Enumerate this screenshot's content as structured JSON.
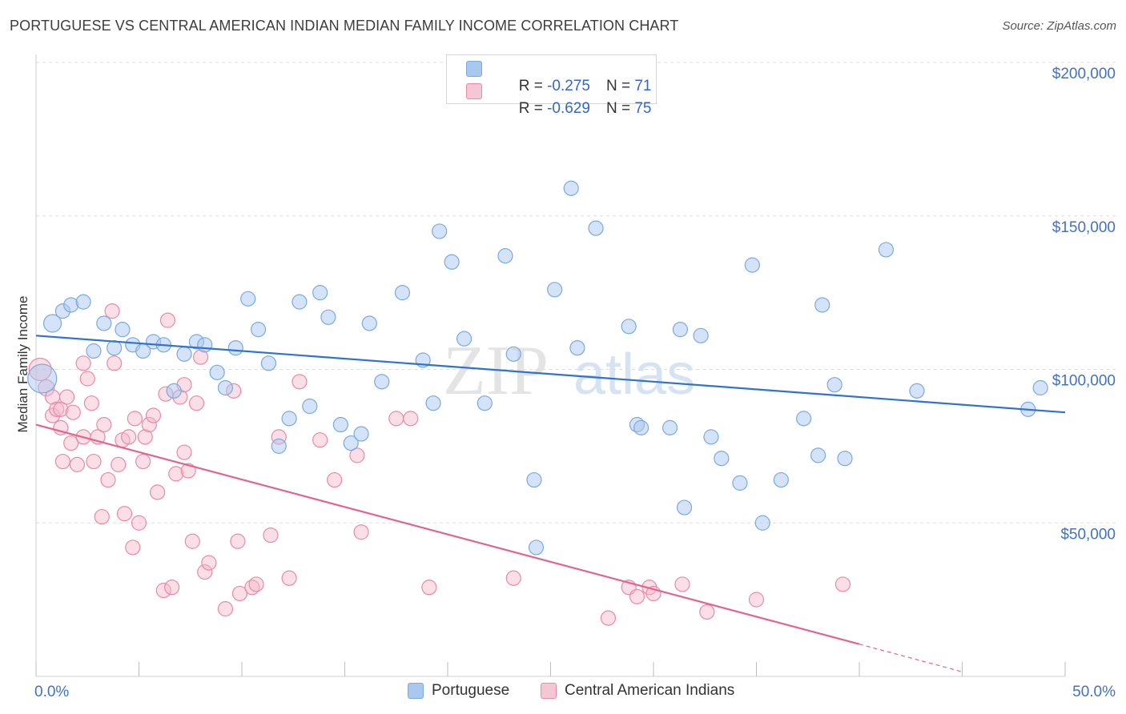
{
  "title": "PORTUGUESE VS CENTRAL AMERICAN INDIAN MEDIAN FAMILY INCOME CORRELATION CHART",
  "source": "Source: ZipAtlas.com",
  "watermark": {
    "zip": "ZIP",
    "atlas": "atlas"
  },
  "colors": {
    "blue_fill": "#a9c8ef",
    "blue_stroke": "#7aaadf",
    "blue_line": "#2f73cf",
    "pink_fill": "#f5b7c9",
    "pink_stroke": "#e98aa7",
    "pink_line": "#e2638f",
    "tick_label": "#3f72c8",
    "grid": "#dddddd"
  },
  "legend_top": {
    "rows": [
      {
        "r_label": "R = ",
        "r_value": "-0.275",
        "n_label": "N = ",
        "n_value": "71"
      },
      {
        "r_label": "R = ",
        "r_value": "-0.629",
        "n_label": "N = ",
        "n_value": "75"
      }
    ]
  },
  "legend_bottom": [
    "Portuguese",
    "Central American Indians"
  ],
  "chart_data": {
    "type": "scatter",
    "title": "PORTUGUESE VS CENTRAL AMERICAN INDIAN MEDIAN FAMILY INCOME CORRELATION CHART",
    "xlabel": "",
    "ylabel": "Median Family Income",
    "xlim": [
      0,
      50
    ],
    "ylim": [
      0,
      200000
    ],
    "x_tick_labels": [
      "0.0%",
      "50.0%"
    ],
    "y_tick_values": [
      50000,
      100000,
      150000,
      200000
    ],
    "y_tick_labels": [
      "$50,000",
      "$100,000",
      "$150,000",
      "$200,000"
    ],
    "grid": true,
    "series": [
      {
        "name": "Portuguese",
        "color": "#a9c8ef",
        "trend": {
          "x": [
            0,
            50
          ],
          "y": [
            111000,
            86000
          ]
        },
        "points": [
          [
            0.3,
            97000,
            18
          ],
          [
            0.8,
            115000,
            11
          ],
          [
            1.3,
            119000,
            9
          ],
          [
            1.7,
            121000,
            9
          ],
          [
            2.3,
            122000,
            9
          ],
          [
            2.8,
            106000,
            9
          ],
          [
            3.3,
            115000,
            9
          ],
          [
            3.8,
            107000,
            9
          ],
          [
            4.2,
            113000,
            9
          ],
          [
            4.7,
            108000,
            9
          ],
          [
            5.2,
            106000,
            9
          ],
          [
            5.7,
            109000,
            9
          ],
          [
            6.2,
            108000,
            9
          ],
          [
            6.7,
            93000,
            9
          ],
          [
            7.2,
            105000,
            9
          ],
          [
            7.8,
            109000,
            9
          ],
          [
            8.2,
            108000,
            9
          ],
          [
            8.8,
            99000,
            9
          ],
          [
            9.2,
            94000,
            9
          ],
          [
            9.7,
            107000,
            9
          ],
          [
            10.3,
            123000,
            9
          ],
          [
            10.8,
            113000,
            9
          ],
          [
            11.3,
            102000,
            9
          ],
          [
            11.8,
            75000,
            9
          ],
          [
            12.3,
            84000,
            9
          ],
          [
            12.8,
            122000,
            9
          ],
          [
            13.3,
            88000,
            9
          ],
          [
            13.8,
            125000,
            9
          ],
          [
            14.2,
            117000,
            9
          ],
          [
            14.8,
            82000,
            9
          ],
          [
            15.3,
            76000,
            9
          ],
          [
            15.8,
            79000,
            9
          ],
          [
            16.2,
            115000,
            9
          ],
          [
            16.8,
            96000,
            9
          ],
          [
            17.8,
            125000,
            9
          ],
          [
            18.8,
            103000,
            9
          ],
          [
            19.3,
            89000,
            9
          ],
          [
            19.6,
            145000,
            9
          ],
          [
            20.2,
            135000,
            9
          ],
          [
            20.8,
            110000,
            9
          ],
          [
            21.8,
            89000,
            9
          ],
          [
            22.8,
            137000,
            9
          ],
          [
            23.2,
            105000,
            9
          ],
          [
            24.2,
            64000,
            9
          ],
          [
            24.3,
            42000,
            9
          ],
          [
            25.2,
            126000,
            9
          ],
          [
            26.0,
            159000,
            9
          ],
          [
            26.3,
            107000,
            9
          ],
          [
            27.2,
            146000,
            9
          ],
          [
            28.8,
            114000,
            9
          ],
          [
            29.2,
            82000,
            9
          ],
          [
            29.4,
            81000,
            9
          ],
          [
            30.8,
            81000,
            9
          ],
          [
            31.3,
            113000,
            9
          ],
          [
            31.5,
            55000,
            9
          ],
          [
            32.3,
            111000,
            9
          ],
          [
            32.8,
            78000,
            9
          ],
          [
            33.3,
            71000,
            9
          ],
          [
            34.2,
            63000,
            9
          ],
          [
            34.8,
            134000,
            9
          ],
          [
            35.3,
            50000,
            9
          ],
          [
            36.2,
            64000,
            9
          ],
          [
            37.3,
            84000,
            9
          ],
          [
            38.0,
            72000,
            9
          ],
          [
            38.2,
            121000,
            9
          ],
          [
            38.8,
            95000,
            9
          ],
          [
            39.3,
            71000,
            9
          ],
          [
            41.3,
            139000,
            9
          ],
          [
            42.8,
            93000,
            9
          ],
          [
            48.2,
            87000,
            9
          ],
          [
            48.8,
            94000,
            9
          ]
        ]
      },
      {
        "name": "Central American Indians",
        "color": "#f5b7c9",
        "trend": {
          "x": [
            0,
            40
          ],
          "y": [
            82000,
            10500
          ]
        },
        "trend_dashed": {
          "x": [
            40,
            45
          ],
          "y": [
            10500,
            1500
          ]
        },
        "points": [
          [
            0.2,
            100000,
            14
          ],
          [
            0.5,
            94000,
            10
          ],
          [
            0.8,
            91000,
            9
          ],
          [
            0.8,
            85000,
            9
          ],
          [
            1.0,
            87000,
            9
          ],
          [
            1.2,
            87000,
            9
          ],
          [
            1.2,
            81000,
            9
          ],
          [
            1.3,
            70000,
            9
          ],
          [
            1.5,
            91000,
            9
          ],
          [
            1.7,
            76000,
            9
          ],
          [
            1.8,
            86000,
            9
          ],
          [
            2.0,
            69000,
            9
          ],
          [
            2.3,
            78000,
            9
          ],
          [
            2.3,
            102000,
            9
          ],
          [
            2.5,
            97000,
            9
          ],
          [
            2.7,
            89000,
            9
          ],
          [
            2.8,
            70000,
            9
          ],
          [
            3.0,
            78000,
            9
          ],
          [
            3.2,
            52000,
            9
          ],
          [
            3.3,
            82000,
            9
          ],
          [
            3.5,
            64000,
            9
          ],
          [
            3.7,
            119000,
            9
          ],
          [
            3.8,
            102000,
            9
          ],
          [
            4.0,
            69000,
            9
          ],
          [
            4.2,
            77000,
            9
          ],
          [
            4.3,
            53000,
            9
          ],
          [
            4.5,
            78000,
            9
          ],
          [
            4.7,
            42000,
            9
          ],
          [
            4.8,
            84000,
            9
          ],
          [
            5.0,
            50000,
            9
          ],
          [
            5.2,
            70000,
            9
          ],
          [
            5.3,
            78000,
            9
          ],
          [
            5.5,
            82000,
            9
          ],
          [
            5.7,
            85000,
            9
          ],
          [
            5.9,
            60000,
            9
          ],
          [
            6.2,
            28000,
            9
          ],
          [
            6.3,
            92000,
            9
          ],
          [
            6.4,
            116000,
            9
          ],
          [
            6.6,
            29000,
            9
          ],
          [
            6.8,
            66000,
            9
          ],
          [
            7.0,
            91000,
            9
          ],
          [
            7.2,
            95000,
            9
          ],
          [
            7.2,
            73000,
            9
          ],
          [
            7.4,
            67000,
            9
          ],
          [
            7.6,
            44000,
            9
          ],
          [
            7.8,
            89000,
            9
          ],
          [
            8.0,
            104000,
            9
          ],
          [
            8.2,
            34000,
            9
          ],
          [
            8.4,
            37000,
            9
          ],
          [
            9.2,
            22000,
            9
          ],
          [
            9.6,
            93000,
            9
          ],
          [
            9.8,
            44000,
            9
          ],
          [
            9.9,
            27000,
            9
          ],
          [
            10.5,
            29000,
            9
          ],
          [
            10.7,
            30000,
            9
          ],
          [
            11.4,
            46000,
            9
          ],
          [
            11.8,
            78000,
            9
          ],
          [
            12.3,
            32000,
            9
          ],
          [
            12.8,
            96000,
            9
          ],
          [
            13.8,
            77000,
            9
          ],
          [
            14.5,
            64000,
            9
          ],
          [
            15.6,
            72000,
            9
          ],
          [
            15.8,
            47000,
            9
          ],
          [
            17.5,
            84000,
            9
          ],
          [
            18.2,
            84000,
            9
          ],
          [
            19.1,
            29000,
            9
          ],
          [
            23.2,
            32000,
            9
          ],
          [
            27.8,
            19000,
            9
          ],
          [
            28.8,
            29000,
            9
          ],
          [
            29.2,
            26000,
            9
          ],
          [
            29.8,
            29000,
            9
          ],
          [
            30.0,
            27000,
            9
          ],
          [
            31.4,
            30000,
            9
          ],
          [
            32.6,
            21000,
            9
          ],
          [
            35.0,
            25000,
            9
          ],
          [
            39.2,
            30000,
            9
          ]
        ]
      }
    ]
  }
}
